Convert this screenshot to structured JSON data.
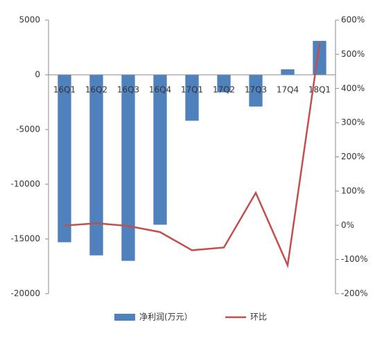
{
  "chart_data": {
    "type": "bar-line",
    "categories": [
      "16Q1",
      "16Q2",
      "16Q3",
      "16Q4",
      "17Q1",
      "17Q2",
      "17Q3",
      "17Q4",
      "18Q1"
    ],
    "series": [
      {
        "name": "净利润(万元）",
        "type": "bar",
        "color": "#4f81bd",
        "values": [
          -15300,
          -16500,
          -17000,
          -13700,
          -4200,
          -1600,
          -2900,
          500,
          3100
        ]
      },
      {
        "name": "环比",
        "type": "line",
        "axis": "y2",
        "color": "#c0504d",
        "values": [
          -1,
          6,
          -2,
          -20,
          -73,
          -65,
          95,
          -117,
          532
        ]
      }
    ],
    "ylim": [
      -20000,
      5000
    ],
    "yticks": [
      -20000,
      -15000,
      -10000,
      -5000,
      0,
      5000
    ],
    "y2lim": [
      -200,
      600
    ],
    "y2ticks": [
      {
        "value": -200,
        "label": "-200%"
      },
      {
        "value": -100,
        "label": "-100%"
      },
      {
        "value": 0,
        "label": "0%"
      },
      {
        "value": 100,
        "label": "100%"
      },
      {
        "value": 200,
        "label": "200%"
      },
      {
        "value": 300,
        "label": "300%"
      },
      {
        "value": 400,
        "label": "400%"
      },
      {
        "value": 500,
        "label": "500%"
      },
      {
        "value": 600,
        "label": "600%"
      }
    ],
    "grid": false,
    "legend": "bottom"
  }
}
